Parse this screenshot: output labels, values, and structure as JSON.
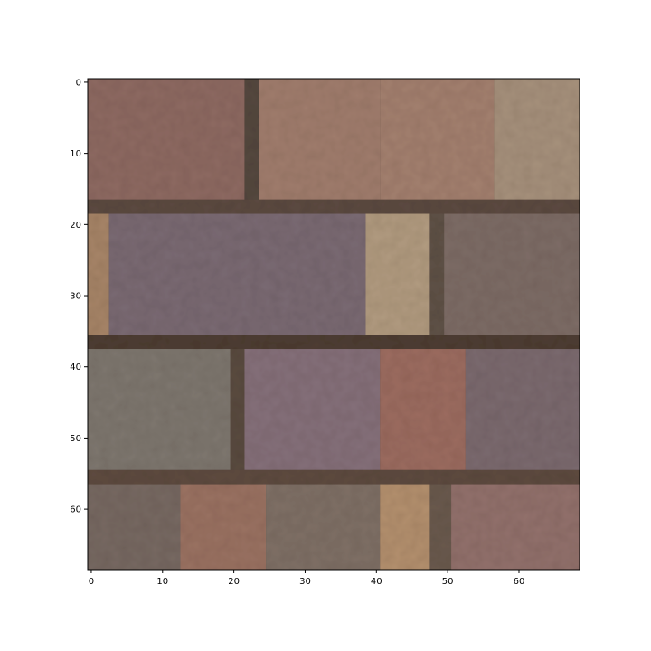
{
  "chart_data": {
    "type": "heatmap",
    "title": "",
    "xlabel": "",
    "ylabel": "",
    "image_size": [
      69,
      69
    ],
    "xlim": [
      -0.5,
      68.5
    ],
    "ylim": [
      68.5,
      -0.5
    ],
    "y_axis_inverted": true,
    "grid": false,
    "legend": "none",
    "x_ticks": [
      0,
      10,
      20,
      30,
      40,
      50,
      60
    ],
    "y_ticks": [
      0,
      10,
      20,
      30,
      40,
      50,
      60
    ],
    "x_tick_labels": [
      "0",
      "10",
      "20",
      "30",
      "40",
      "50",
      "60"
    ],
    "y_tick_labels": [
      "0",
      "10",
      "20",
      "30",
      "40",
      "50",
      "60"
    ],
    "content": "brick wall texture image",
    "mortar_color": "#5b4a40",
    "regions": [
      {
        "x": [
          -0.5,
          21.5
        ],
        "y": [
          -0.5,
          16.5
        ],
        "color": "#8e6a62"
      },
      {
        "x": [
          21.5,
          23.5
        ],
        "y": [
          -0.5,
          16.5
        ],
        "color": "#55483f"
      },
      {
        "x": [
          23.5,
          40.5
        ],
        "y": [
          -0.5,
          16.5
        ],
        "color": "#a07d6d"
      },
      {
        "x": [
          40.5,
          56.5
        ],
        "y": [
          -0.5,
          16.5
        ],
        "color": "#a3806f"
      },
      {
        "x": [
          56.5,
          68.5
        ],
        "y": [
          -0.5,
          16.5
        ],
        "color": "#a6917c"
      },
      {
        "x": [
          -0.5,
          68.5
        ],
        "y": [
          16.5,
          18.5
        ],
        "color": "#5c4a41"
      },
      {
        "x": [
          -0.5,
          2.5
        ],
        "y": [
          18.5,
          35.5
        ],
        "color": "#a78568"
      },
      {
        "x": [
          2.5,
          38.5
        ],
        "y": [
          18.5,
          35.5
        ],
        "color": "#7a6a73"
      },
      {
        "x": [
          38.5,
          47.5
        ],
        "y": [
          18.5,
          35.5
        ],
        "color": "#b19b80"
      },
      {
        "x": [
          47.5,
          49.5
        ],
        "y": [
          18.5,
          35.5
        ],
        "color": "#5f5247"
      },
      {
        "x": [
          49.5,
          68.5
        ],
        "y": [
          18.5,
          35.5
        ],
        "color": "#7d6c66"
      },
      {
        "x": [
          -0.5,
          68.5
        ],
        "y": [
          35.5,
          37.5
        ],
        "color": "#4e3d33"
      },
      {
        "x": [
          -0.5,
          19.5
        ],
        "y": [
          37.5,
          54.5
        ],
        "color": "#7e776f"
      },
      {
        "x": [
          19.5,
          21.5
        ],
        "y": [
          37.5,
          54.5
        ],
        "color": "#5a4b40"
      },
      {
        "x": [
          21.5,
          40.5
        ],
        "y": [
          37.5,
          54.5
        ],
        "color": "#85707a"
      },
      {
        "x": [
          40.5,
          52.5
        ],
        "y": [
          37.5,
          54.5
        ],
        "color": "#9c6c60"
      },
      {
        "x": [
          52.5,
          68.5
        ],
        "y": [
          37.5,
          54.5
        ],
        "color": "#7b6a6f"
      },
      {
        "x": [
          -0.5,
          68.5
        ],
        "y": [
          54.5,
          56.5
        ],
        "color": "#5e4b40"
      },
      {
        "x": [
          -0.5,
          12.5
        ],
        "y": [
          56.5,
          68.5
        ],
        "color": "#776962"
      },
      {
        "x": [
          12.5,
          24.5
        ],
        "y": [
          56.5,
          68.5
        ],
        "color": "#9a7262"
      },
      {
        "x": [
          24.5,
          40.5
        ],
        "y": [
          56.5,
          68.5
        ],
        "color": "#7f7066"
      },
      {
        "x": [
          40.5,
          47.5
        ],
        "y": [
          56.5,
          68.5
        ],
        "color": "#b3906e"
      },
      {
        "x": [
          47.5,
          50.5
        ],
        "y": [
          56.5,
          68.5
        ],
        "color": "#6a5a4e"
      },
      {
        "x": [
          50.5,
          68.5
        ],
        "y": [
          56.5,
          68.5
        ],
        "color": "#92716c"
      }
    ]
  }
}
